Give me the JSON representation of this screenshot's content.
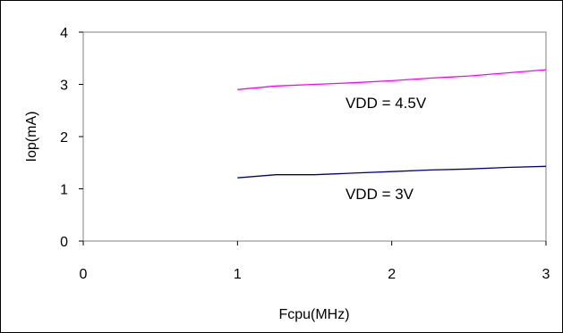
{
  "chart_data": {
    "type": "line",
    "title": "",
    "xlabel": "Fcpu(MHz)",
    "ylabel": "Iop(mA)",
    "xlim": [
      0,
      3
    ],
    "ylim": [
      0,
      4
    ],
    "xticks": [
      "0",
      "1",
      "2",
      "3"
    ],
    "yticks": [
      "0",
      "1",
      "2",
      "3",
      "4"
    ],
    "grid": false,
    "legend": "none",
    "series": [
      {
        "color": "#ff00ff",
        "x": [
          1,
          1.25,
          1.5,
          1.75,
          2,
          2.25,
          2.5,
          2.75,
          3
        ],
        "y": [
          2.9,
          2.97,
          3.0,
          3.03,
          3.07,
          3.12,
          3.16,
          3.22,
          3.28
        ]
      },
      {
        "color": "#000080",
        "x": [
          1,
          1.25,
          1.5,
          1.75,
          2,
          2.25,
          2.5,
          2.75,
          3
        ],
        "y": [
          1.21,
          1.27,
          1.27,
          1.3,
          1.33,
          1.36,
          1.38,
          1.41,
          1.43
        ]
      }
    ],
    "annotations": [
      {
        "text": "VDD = 4.5V",
        "x": 1.7,
        "y": 2.55
      },
      {
        "text": "VDD = 3V",
        "x": 1.7,
        "y": 0.8
      }
    ]
  }
}
